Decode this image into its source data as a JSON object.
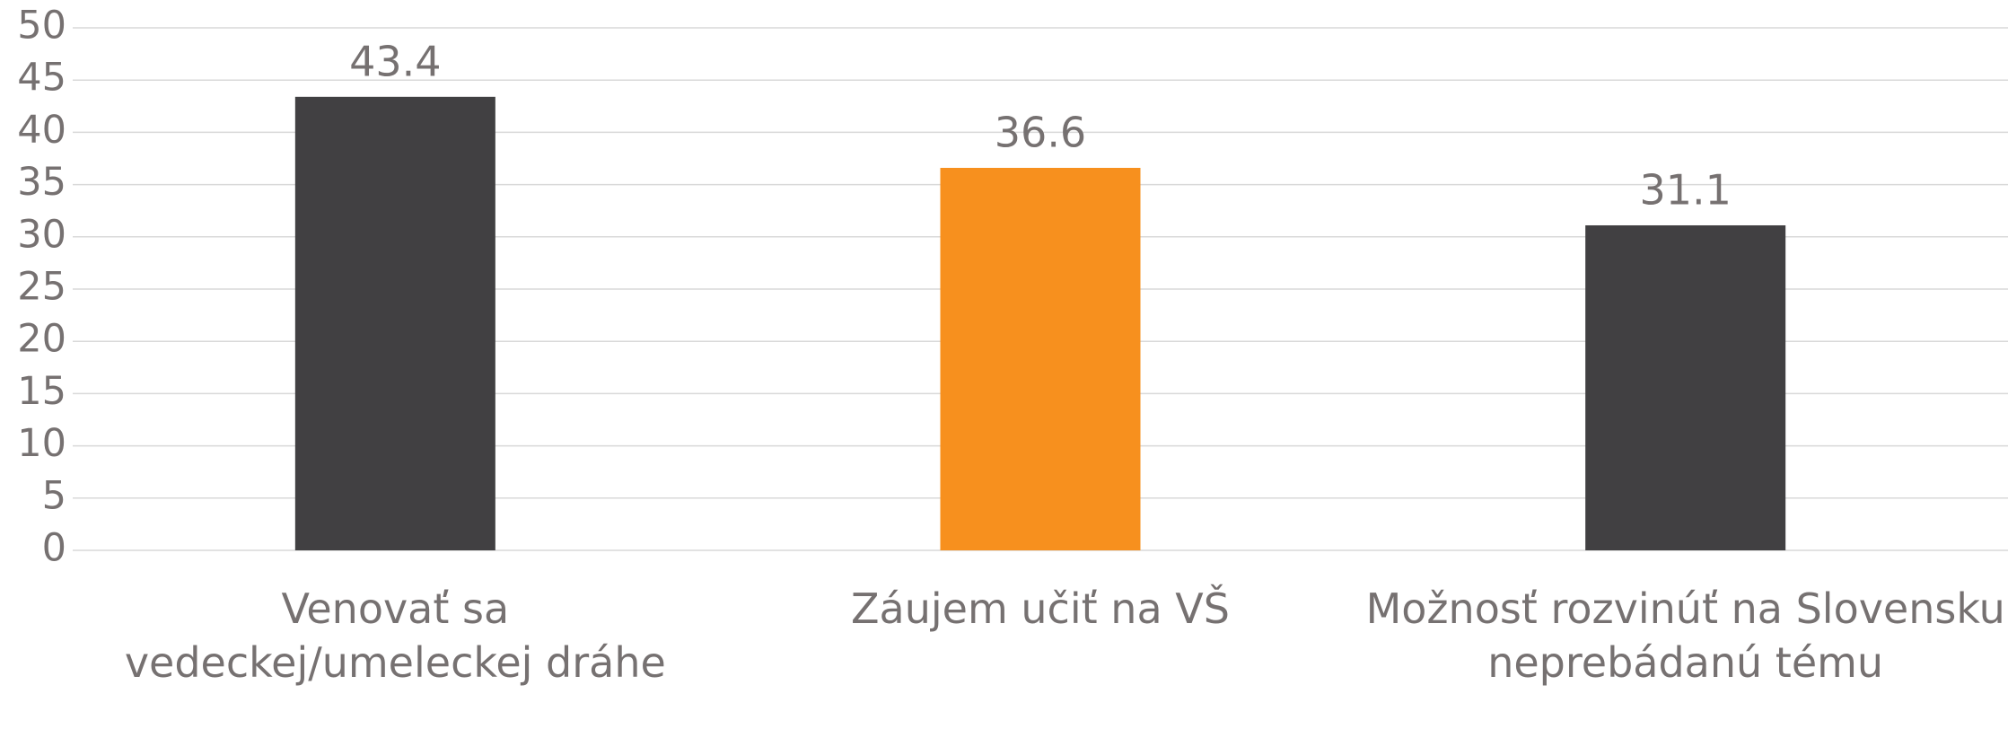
{
  "chart_data": {
    "type": "bar",
    "categories": [
      "Venovať sa vedeckej/umeleckej dráhe",
      "Záujem učiť na VŠ",
      "Možnosť rozvinúť na Slovensku neprebádanú tému"
    ],
    "values": [
      43.4,
      36.6,
      31.1
    ],
    "colors": [
      "#414042",
      "#f7901e",
      "#414042"
    ],
    "ylim": [
      0,
      50
    ],
    "yticks": [
      0,
      5,
      10,
      15,
      20,
      25,
      30,
      35,
      40,
      45,
      50
    ],
    "grid": true
  }
}
